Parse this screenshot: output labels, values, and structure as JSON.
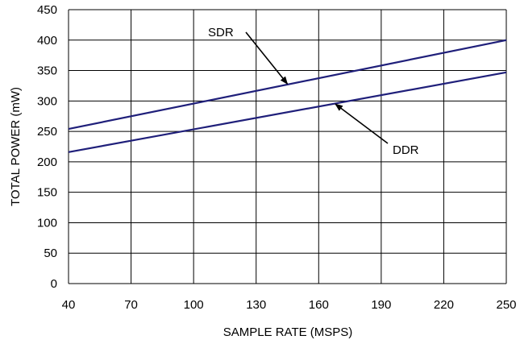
{
  "chart_data": {
    "type": "line",
    "xlabel": "SAMPLE RATE (MSPS)",
    "ylabel": "TOTAL POWER (mW)",
    "xlim": [
      40,
      250
    ],
    "ylim": [
      0,
      450
    ],
    "x_ticks": [
      40,
      70,
      100,
      130,
      160,
      190,
      220,
      250
    ],
    "y_ticks": [
      0,
      50,
      100,
      150,
      200,
      250,
      300,
      350,
      400,
      450
    ],
    "grid": true,
    "line_color": "#1f1f7a",
    "series": [
      {
        "name": "SDR",
        "x": [
          40,
          250
        ],
        "y": [
          254,
          400
        ]
      },
      {
        "name": "DDR",
        "x": [
          40,
          250
        ],
        "y": [
          216,
          347
        ]
      }
    ],
    "annotations": [
      {
        "text": "SDR",
        "series": "SDR",
        "point": [
          145,
          328
        ]
      },
      {
        "text": "DDR",
        "series": "DDR",
        "point": [
          168,
          295
        ]
      }
    ]
  }
}
